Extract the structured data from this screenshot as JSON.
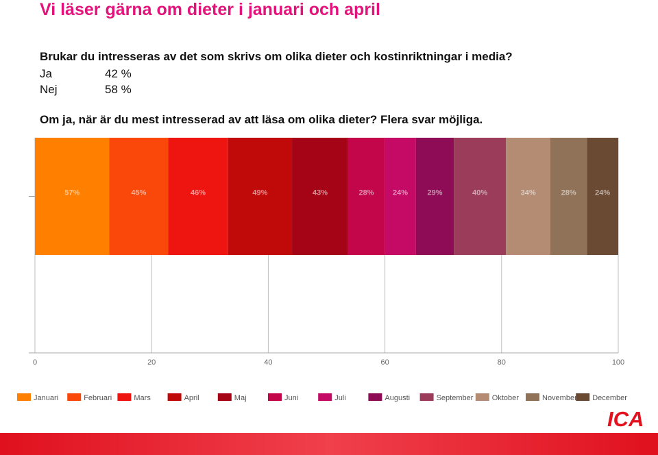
{
  "page": {
    "title": "Vi läser gärna om dieter i januari och april",
    "question1": "Brukar du intresseras av det som skrivs om olika dieter och kostinriktningar i media?",
    "answers": [
      {
        "label": "Ja",
        "value": "42 %"
      },
      {
        "label": "Nej",
        "value": "58 %"
      }
    ],
    "question2": "Om ja, när är du mest intresserad av att läsa om olika dieter? Flera svar möjliga.",
    "logo_text": "ICA"
  },
  "chart_data": {
    "type": "bar",
    "orientation": "horizontal-stacked",
    "x_ticks": [
      "0",
      "20",
      "40",
      "60",
      "80",
      "100"
    ],
    "xlim": [
      0,
      100
    ],
    "grid": true,
    "legend_placement": "bottom",
    "series": [
      {
        "name": "Januari",
        "value": 57,
        "label": "57%",
        "color": "#ff7f00"
      },
      {
        "name": "Februari",
        "value": 45,
        "label": "45%",
        "color": "#f9480a"
      },
      {
        "name": "Mars",
        "value": 46,
        "label": "46%",
        "color": "#ee1410"
      },
      {
        "name": "April",
        "value": 49,
        "label": "49%",
        "color": "#c00a0a"
      },
      {
        "name": "Maj",
        "value": 43,
        "label": "43%",
        "color": "#a50416"
      },
      {
        "name": "Juni",
        "value": 28,
        "label": "28%",
        "color": "#c3064a"
      },
      {
        "name": "Juli",
        "value": 24,
        "label": "24%",
        "color": "#c50a66"
      },
      {
        "name": "Augusti",
        "value": 29,
        "label": "29%",
        "color": "#8e0c55"
      },
      {
        "name": "September",
        "value": 40,
        "label": "40%",
        "color": "#9a3c5a"
      },
      {
        "name": "Oktober",
        "value": 34,
        "label": "34%",
        "color": "#b38c73"
      },
      {
        "name": "November",
        "value": 28,
        "label": "28%",
        "color": "#8f7258"
      },
      {
        "name": "December",
        "value": 24,
        "label": "24%",
        "color": "#6b4a34"
      }
    ]
  }
}
